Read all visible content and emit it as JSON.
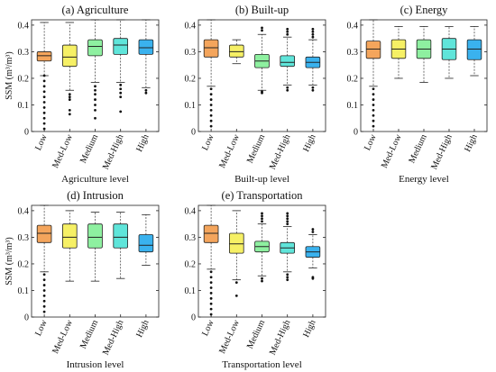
{
  "colors": {
    "Low": "#f4a55c",
    "Med-Low": "#f6f065",
    "Medium": "#8ef0a0",
    "Med-High": "#5fe5da",
    "High": "#3ab2ee",
    "outline": "#222222",
    "outlier": "#111111"
  },
  "shared_ylabel": "SSM (m³/m³)",
  "chart_data": [
    {
      "type": "box",
      "title": "(a) Agriculture",
      "xlabel": "Agriculture level",
      "categories": [
        "Low",
        "Med-Low",
        "Medium",
        "Med-High",
        "High"
      ],
      "ylim": [
        0,
        0.42
      ],
      "yticks": [
        "0",
        "0.1",
        "0.2",
        "0.3",
        "0.4"
      ],
      "boxes": [
        {
          "whisker_low": 0.21,
          "q1": 0.265,
          "median": 0.285,
          "q3": 0.3,
          "whisker_high": 0.41,
          "outliers": [
            0.21,
            0.19,
            0.17,
            0.15,
            0.13,
            0.11,
            0.09,
            0.07,
            0.05,
            0.03,
            0.01
          ]
        },
        {
          "whisker_low": 0.155,
          "q1": 0.245,
          "median": 0.28,
          "q3": 0.325,
          "whisker_high": 0.41,
          "outliers": [
            0.14,
            0.13,
            0.12,
            0.08,
            0.065
          ]
        },
        {
          "whisker_low": 0.185,
          "q1": 0.285,
          "median": 0.32,
          "q3": 0.345,
          "whisker_high": 0.42,
          "outliers": [
            0.17,
            0.155,
            0.14,
            0.12,
            0.1,
            0.08,
            0.05
          ]
        },
        {
          "whisker_low": 0.185,
          "q1": 0.29,
          "median": 0.325,
          "q3": 0.35,
          "whisker_high": 0.42,
          "outliers": [
            0.175,
            0.16,
            0.145,
            0.13,
            0.075
          ]
        },
        {
          "whisker_low": 0.165,
          "q1": 0.29,
          "median": 0.315,
          "q3": 0.345,
          "whisker_high": 0.42,
          "outliers": [
            0.155,
            0.145
          ]
        }
      ]
    },
    {
      "type": "box",
      "title": "(b) Built-up",
      "xlabel": "Built-up level",
      "categories": [
        "Low",
        "Med-Low",
        "Medium",
        "Med-High",
        "High"
      ],
      "ylim": [
        0,
        0.42
      ],
      "yticks": [
        "0",
        "0.1",
        "0.2",
        "0.3",
        "0.4"
      ],
      "boxes": [
        {
          "whisker_low": 0.17,
          "q1": 0.28,
          "median": 0.315,
          "q3": 0.345,
          "whisker_high": 0.42,
          "outliers": [
            0.16,
            0.14,
            0.12,
            0.1,
            0.08,
            0.06,
            0.04,
            0.02
          ]
        },
        {
          "whisker_low": 0.255,
          "q1": 0.28,
          "median": 0.3,
          "q3": 0.325,
          "whisker_high": 0.345,
          "outliers": []
        },
        {
          "whisker_low": 0.155,
          "q1": 0.24,
          "median": 0.265,
          "q3": 0.29,
          "whisker_high": 0.365,
          "outliers": [
            0.38,
            0.39,
            0.145,
            0.15
          ]
        },
        {
          "whisker_low": 0.175,
          "q1": 0.245,
          "median": 0.26,
          "q3": 0.285,
          "whisker_high": 0.355,
          "outliers": [
            0.365,
            0.375,
            0.385,
            0.165,
            0.155
          ]
        },
        {
          "whisker_low": 0.175,
          "q1": 0.24,
          "median": 0.26,
          "q3": 0.28,
          "whisker_high": 0.345,
          "outliers": [
            0.355,
            0.365,
            0.375,
            0.385,
            0.165,
            0.155
          ]
        }
      ]
    },
    {
      "type": "box",
      "title": "(c) Energy",
      "xlabel": "Energy level",
      "categories": [
        "Low",
        "Med-Low",
        "Medium",
        "Med-High",
        "High"
      ],
      "ylim": [
        0,
        0.42
      ],
      "yticks": [
        "0",
        "0.1",
        "0.2",
        "0.3",
        "0.4"
      ],
      "boxes": [
        {
          "whisker_low": 0.17,
          "q1": 0.275,
          "median": 0.31,
          "q3": 0.34,
          "whisker_high": 0.42,
          "outliers": [
            0.16,
            0.14,
            0.12,
            0.1,
            0.08,
            0.06,
            0.04,
            0.02
          ]
        },
        {
          "whisker_low": 0.2,
          "q1": 0.275,
          "median": 0.31,
          "q3": 0.345,
          "whisker_high": 0.395,
          "outliers": []
        },
        {
          "whisker_low": 0.185,
          "q1": 0.275,
          "median": 0.31,
          "q3": 0.345,
          "whisker_high": 0.395,
          "outliers": []
        },
        {
          "whisker_low": 0.2,
          "q1": 0.27,
          "median": 0.31,
          "q3": 0.35,
          "whisker_high": 0.395,
          "outliers": []
        },
        {
          "whisker_low": 0.21,
          "q1": 0.27,
          "median": 0.31,
          "q3": 0.345,
          "whisker_high": 0.395,
          "outliers": []
        }
      ]
    },
    {
      "type": "box",
      "title": "(d) Intrusion",
      "xlabel": "Intrusion level",
      "categories": [
        "Low",
        "Med-Low",
        "Medium",
        "Med-High",
        "High"
      ],
      "ylim": [
        0,
        0.42
      ],
      "yticks": [
        "0",
        "0.1",
        "0.2",
        "0.3",
        "0.4"
      ],
      "boxes": [
        {
          "whisker_low": 0.17,
          "q1": 0.28,
          "median": 0.315,
          "q3": 0.345,
          "whisker_high": 0.42,
          "outliers": [
            0.16,
            0.14,
            0.12,
            0.1,
            0.08,
            0.06,
            0.04,
            0.02
          ]
        },
        {
          "whisker_low": 0.135,
          "q1": 0.26,
          "median": 0.3,
          "q3": 0.35,
          "whisker_high": 0.4,
          "outliers": []
        },
        {
          "whisker_low": 0.135,
          "q1": 0.26,
          "median": 0.3,
          "q3": 0.35,
          "whisker_high": 0.395,
          "outliers": []
        },
        {
          "whisker_low": 0.145,
          "q1": 0.26,
          "median": 0.3,
          "q3": 0.35,
          "whisker_high": 0.395,
          "outliers": []
        },
        {
          "whisker_low": 0.195,
          "q1": 0.245,
          "median": 0.27,
          "q3": 0.31,
          "whisker_high": 0.385,
          "outliers": []
        }
      ]
    },
    {
      "type": "box",
      "title": "(e) Transportation",
      "xlabel": "Transportation level",
      "categories": [
        "Low",
        "Med-Low",
        "Medium",
        "Med-High",
        "High"
      ],
      "ylim": [
        0,
        0.42
      ],
      "yticks": [
        "0",
        "0.1",
        "0.2",
        "0.3",
        "0.4"
      ],
      "boxes": [
        {
          "whisker_low": 0.18,
          "q1": 0.28,
          "median": 0.315,
          "q3": 0.345,
          "whisker_high": 0.42,
          "outliers": [
            0.17,
            0.15,
            0.13,
            0.11,
            0.09,
            0.07,
            0.05,
            0.03,
            0.01
          ]
        },
        {
          "whisker_low": 0.14,
          "q1": 0.24,
          "median": 0.275,
          "q3": 0.315,
          "whisker_high": 0.4,
          "outliers": [
            0.13,
            0.08
          ]
        },
        {
          "whisker_low": 0.155,
          "q1": 0.245,
          "median": 0.265,
          "q3": 0.285,
          "whisker_high": 0.35,
          "outliers": [
            0.36,
            0.37,
            0.38,
            0.39,
            0.145,
            0.135
          ]
        },
        {
          "whisker_low": 0.17,
          "q1": 0.24,
          "median": 0.26,
          "q3": 0.28,
          "whisker_high": 0.34,
          "outliers": [
            0.35,
            0.36,
            0.37,
            0.38,
            0.39,
            0.16,
            0.15,
            0.14
          ]
        },
        {
          "whisker_low": 0.185,
          "q1": 0.225,
          "median": 0.245,
          "q3": 0.265,
          "whisker_high": 0.31,
          "outliers": [
            0.32,
            0.33,
            0.15,
            0.145
          ]
        }
      ]
    }
  ]
}
